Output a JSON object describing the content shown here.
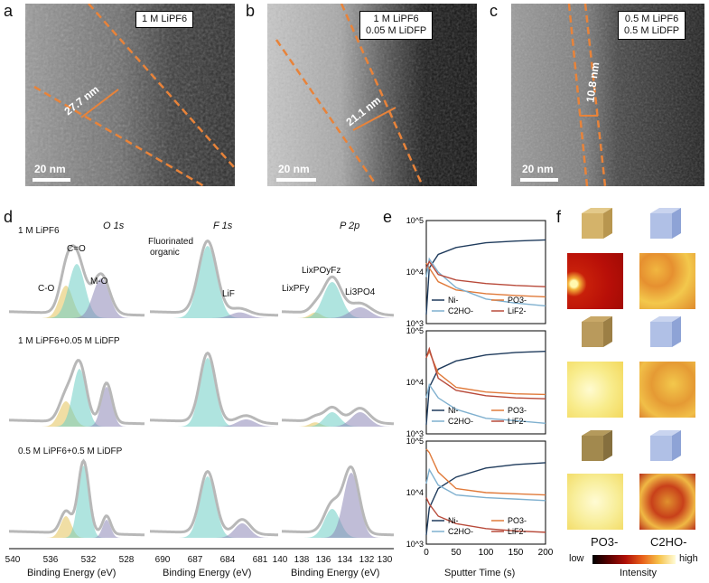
{
  "panels": {
    "a": "a",
    "b": "b",
    "c": "c",
    "d": "d",
    "e": "e",
    "f": "f"
  },
  "tem": {
    "a": {
      "box_line1": "1 M LiPF6",
      "measure": "27.7 nm",
      "scale": "20 nm"
    },
    "b": {
      "box_line1": "1 M LiPF6",
      "box_line2": "0.05 M LiDFP",
      "measure": "21.1 nm",
      "scale": "20 nm"
    },
    "c": {
      "box_line1": "0.5 M LiPF6",
      "box_line2": "0.5 M LiDFP",
      "measure": "10.8 nm",
      "scale": "20 nm"
    }
  },
  "xps": {
    "headers": {
      "o": "O 1s",
      "f": "F 1s",
      "p": "P 2p"
    },
    "rows": [
      "1 M LiPF6",
      "1 M LiPF6+0.05 M LiDFP",
      "0.5 M LiPF6+0.5 M LiDFP"
    ],
    "peak_labels": {
      "co": "C-O",
      "ceo": "C=O",
      "mo": "M-O",
      "fluor1": "Fluorinated",
      "fluor2": "organic",
      "lif": "LiF",
      "lixpf": "LixPFy",
      "lixpof": "LixPOyFz",
      "li3po4": "Li3PO4"
    },
    "axes": {
      "o_ticks": [
        "540",
        "536",
        "532",
        "528"
      ],
      "f_ticks": [
        "690",
        "687",
        "684",
        "681"
      ],
      "p_ticks": [
        "140",
        "138",
        "136",
        "134",
        "132",
        "130"
      ],
      "xlabel": "Binding Energy (eV)"
    }
  },
  "tof": {
    "xlabel": "Sputter Time (s)",
    "x_ticks": [
      "0",
      "50",
      "100",
      "150",
      "200"
    ],
    "legend": [
      "Ni-",
      "PO3-",
      "C2HO-",
      "LiF2-"
    ],
    "y_ticks": [
      "10^5",
      "10^4",
      "10^3"
    ],
    "colors": {
      "Ni": "#1f3b5c",
      "PO3": "#e07a3a",
      "C2HO": "#7fb0cf",
      "LiF2": "#b84a3a"
    }
  },
  "maps": {
    "label_po3": "PO3-",
    "label_c2ho": "C2HO-",
    "cbar_low": "low",
    "cbar_high": "high",
    "cbar_label": "Intensity"
  },
  "chart_data": {
    "type": "line",
    "title": "",
    "xlabel": "Sputter Time (s)",
    "ylabel": "",
    "xlim": [
      0,
      200
    ],
    "ylim": [
      1000,
      100000
    ],
    "yscale": "log",
    "panels": [
      {
        "series": [
          {
            "name": "Ni-",
            "x": [
              0,
              5,
              20,
              50,
              100,
              150,
              200
            ],
            "values": [
              1500,
              12000,
              22000,
              30000,
              37000,
              40000,
              42000
            ]
          },
          {
            "name": "PO3-",
            "x": [
              0,
              5,
              20,
              50,
              100,
              150,
              200
            ],
            "values": [
              15000,
              12000,
              6500,
              4500,
              3800,
              3500,
              3300
            ]
          },
          {
            "name": "C2HO-",
            "x": [
              0,
              5,
              20,
              50,
              100,
              150,
              200
            ],
            "values": [
              8000,
              18000,
              10000,
              5000,
              3000,
              2500,
              2200
            ]
          },
          {
            "name": "LiF2-",
            "x": [
              0,
              5,
              20,
              50,
              100,
              150,
              200
            ],
            "values": [
              12000,
              16000,
              9000,
              7000,
              6000,
              5500,
              5200
            ]
          }
        ]
      },
      {
        "series": [
          {
            "name": "Ni-",
            "x": [
              0,
              5,
              20,
              50,
              100,
              150,
              200
            ],
            "values": [
              1500,
              8000,
              18000,
              26000,
              34000,
              38000,
              40000
            ]
          },
          {
            "name": "PO3-",
            "x": [
              0,
              5,
              20,
              50,
              100,
              150,
              200
            ],
            "values": [
              30000,
              40000,
              15000,
              8000,
              6500,
              6000,
              5800
            ]
          },
          {
            "name": "C2HO-",
            "x": [
              0,
              5,
              20,
              50,
              100,
              150,
              200
            ],
            "values": [
              5000,
              9000,
              5000,
              3000,
              2000,
              1800,
              1600
            ]
          },
          {
            "name": "LiF2-",
            "x": [
              0,
              5,
              20,
              50,
              100,
              150,
              200
            ],
            "values": [
              30000,
              45000,
              12000,
              7000,
              5500,
              5000,
              4800
            ]
          }
        ]
      },
      {
        "series": [
          {
            "name": "Ni-",
            "x": [
              0,
              5,
              20,
              50,
              100,
              150,
              200
            ],
            "values": [
              1500,
              5000,
              12000,
              20000,
              30000,
              35000,
              38000
            ]
          },
          {
            "name": "PO3-",
            "x": [
              0,
              5,
              20,
              50,
              100,
              150,
              200
            ],
            "values": [
              70000,
              60000,
              25000,
              12000,
              10000,
              9500,
              9000
            ]
          },
          {
            "name": "C2HO-",
            "x": [
              0,
              5,
              20,
              50,
              100,
              150,
              200
            ],
            "values": [
              15000,
              28000,
              14000,
              9000,
              8000,
              7500,
              7000
            ]
          },
          {
            "name": "LiF2-",
            "x": [
              0,
              5,
              20,
              50,
              100,
              150,
              200
            ],
            "values": [
              8000,
              6000,
              3500,
              2500,
              2000,
              1800,
              1700
            ]
          }
        ]
      }
    ]
  }
}
